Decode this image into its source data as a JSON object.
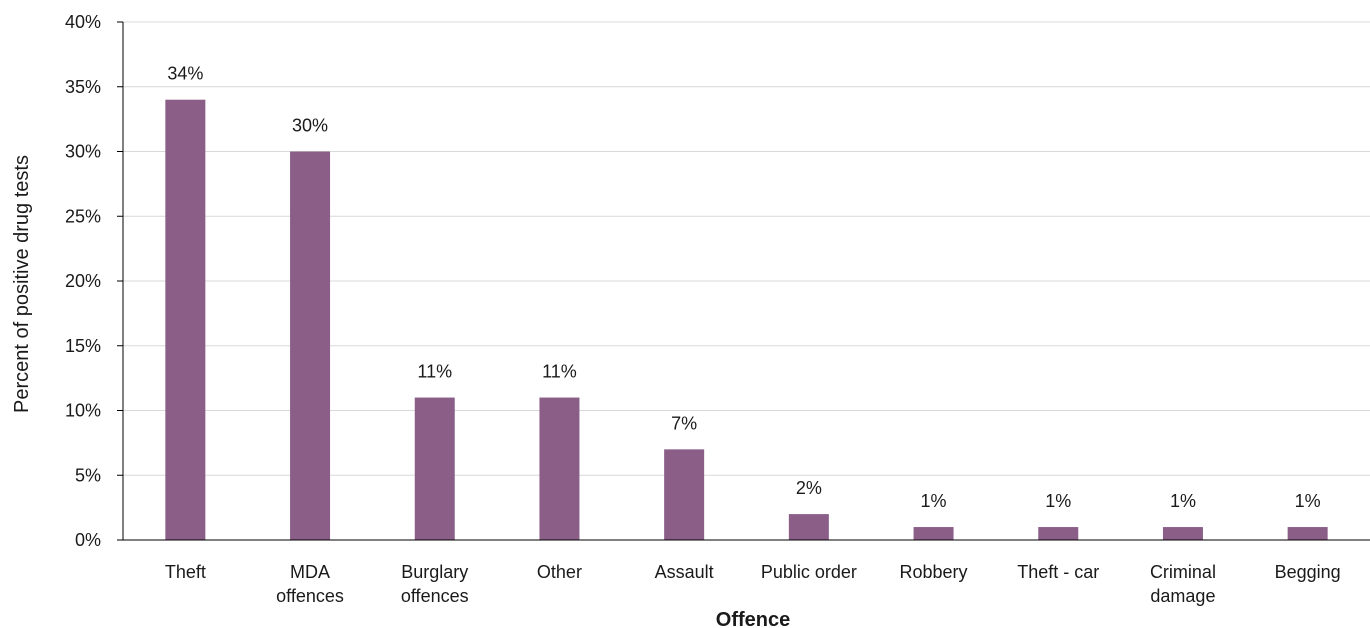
{
  "chart_data": {
    "type": "bar",
    "categories": [
      "Theft",
      "MDA offences",
      "Burglary offences",
      "Other",
      "Assault",
      "Public order",
      "Robbery",
      "Theft - car",
      "Criminal damage",
      "Begging"
    ],
    "category_label_lines": [
      [
        "Theft"
      ],
      [
        "MDA",
        "offences"
      ],
      [
        "Burglary",
        "offences"
      ],
      [
        "Other"
      ],
      [
        "Assault"
      ],
      [
        "Public order"
      ],
      [
        "Robbery"
      ],
      [
        "Theft - car"
      ],
      [
        "Criminal",
        "damage"
      ],
      [
        "Begging"
      ]
    ],
    "values": [
      34,
      30,
      11,
      11,
      7,
      2,
      1,
      1,
      1,
      1
    ],
    "data_labels": [
      "34%",
      "30%",
      "11%",
      "11%",
      "7%",
      "2%",
      "1%",
      "1%",
      "1%",
      "1%"
    ],
    "xlabel": "Offence",
    "ylabel": "Percent of positive drug tests",
    "ylim": [
      0,
      40
    ],
    "yticks": [
      0,
      5,
      10,
      15,
      20,
      25,
      30,
      35,
      40
    ],
    "ytick_labels": [
      "0%",
      "5%",
      "10%",
      "15%",
      "20%",
      "25%",
      "30%",
      "35%",
      "40%"
    ],
    "grid": true,
    "colors": {
      "bar": "#8B5E88",
      "grid": "#D9D9D9",
      "axis": "#000000"
    }
  }
}
